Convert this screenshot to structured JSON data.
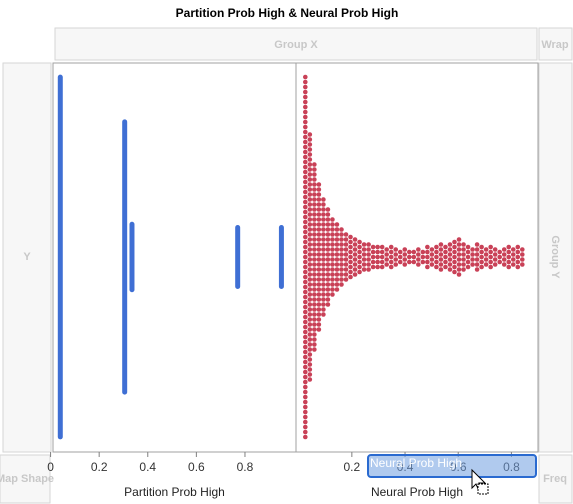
{
  "title": "Partition Prob High & Neural Prob High",
  "zones": {
    "group_x": "Group X",
    "wrap": "Wrap",
    "y": "Y",
    "group_y": "Group Y",
    "map_shape": "Map Shape",
    "freq": "Freq"
  },
  "drag_label": "Neural Prob High",
  "chart_data": [
    {
      "type": "strip",
      "x_label": "Partition Prob High",
      "color": "#3f6fd4",
      "xlim": [
        0.01,
        1.01
      ],
      "xticks": [
        0,
        0.2,
        0.4,
        0.6,
        0.8
      ],
      "x": [
        0.04,
        0.305,
        0.335,
        0.77,
        0.95
      ],
      "counts": [
        57,
        43,
        11,
        10,
        10
      ]
    },
    {
      "type": "dotplot",
      "x_label": "Neural Prob High",
      "color": "#c94157",
      "xlim": [
        -0.01,
        0.9
      ],
      "xticks": [
        0.2,
        0.4,
        0.6,
        0.8
      ],
      "x": [
        0.025,
        0.042,
        0.059,
        0.076,
        0.093,
        0.11,
        0.127,
        0.144,
        0.161,
        0.178,
        0.195,
        0.212,
        0.229,
        0.246,
        0.263,
        0.28,
        0.297,
        0.314,
        0.331,
        0.348,
        0.365,
        0.382,
        0.399,
        0.416,
        0.433,
        0.45,
        0.467,
        0.484,
        0.501,
        0.518,
        0.535,
        0.552,
        0.569,
        0.586,
        0.603,
        0.62,
        0.637,
        0.654,
        0.671,
        0.688,
        0.705,
        0.722,
        0.739,
        0.756,
        0.773,
        0.79,
        0.807,
        0.824,
        0.841
      ],
      "counts": [
        73,
        50,
        38,
        30,
        24,
        20,
        16,
        14,
        12,
        10,
        9,
        8,
        7,
        6,
        6,
        5,
        5,
        5,
        4,
        5,
        4,
        3,
        4,
        3,
        3,
        4,
        3,
        5,
        4,
        5,
        6,
        5,
        6,
        7,
        8,
        6,
        5,
        4,
        6,
        5,
        4,
        5,
        4,
        3,
        4,
        5,
        4,
        5,
        4
      ]
    }
  ]
}
